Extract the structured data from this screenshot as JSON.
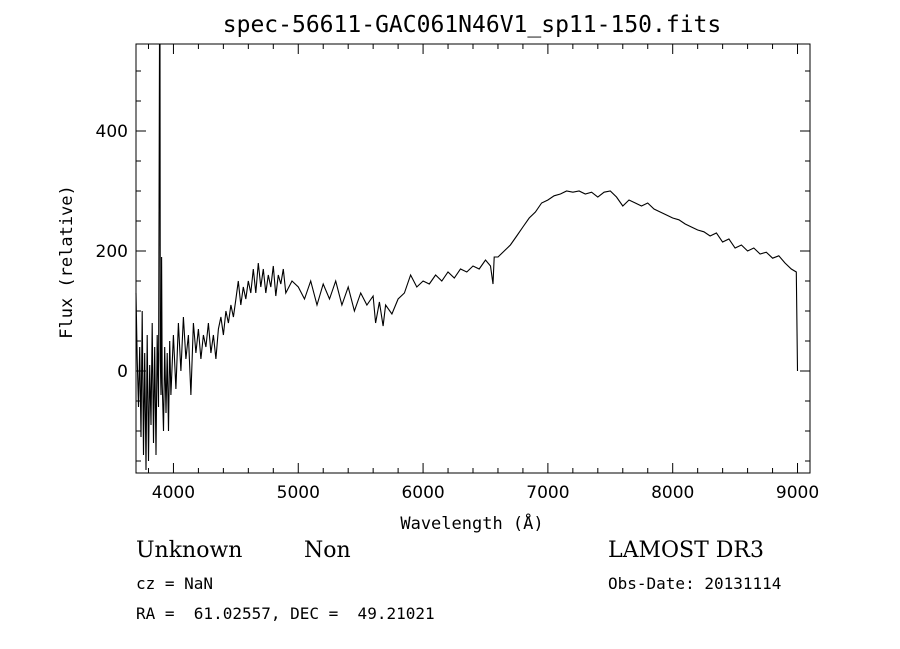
{
  "chart_data": {
    "type": "line",
    "title": "spec-56611-GAC061N46V1_sp11-150.fits",
    "xlabel": "Wavelength (Å)",
    "ylabel": "Flux (relative)",
    "xlim": [
      3700,
      9100
    ],
    "ylim": [
      -170,
      545
    ],
    "xticks": [
      4000,
      5000,
      6000,
      7000,
      8000,
      9000
    ],
    "yticks": [
      0,
      200,
      400
    ],
    "grid": false,
    "series": [
      {
        "name": "flux",
        "points": [
          [
            3700,
            130
          ],
          [
            3710,
            20
          ],
          [
            3720,
            -60
          ],
          [
            3730,
            40
          ],
          [
            3740,
            -110
          ],
          [
            3750,
            100
          ],
          [
            3760,
            -140
          ],
          [
            3770,
            30
          ],
          [
            3780,
            -165
          ],
          [
            3790,
            60
          ],
          [
            3800,
            -150
          ],
          [
            3810,
            10
          ],
          [
            3820,
            -90
          ],
          [
            3830,
            80
          ],
          [
            3840,
            -120
          ],
          [
            3850,
            40
          ],
          [
            3860,
            -140
          ],
          [
            3870,
            60
          ],
          [
            3880,
            -60
          ],
          [
            3888,
            545
          ],
          [
            3892,
            545
          ],
          [
            3895,
            20
          ],
          [
            3900,
            -40
          ],
          [
            3905,
            190
          ],
          [
            3910,
            -20
          ],
          [
            3920,
            -100
          ],
          [
            3930,
            40
          ],
          [
            3940,
            -70
          ],
          [
            3950,
            30
          ],
          [
            3960,
            -100
          ],
          [
            3970,
            50
          ],
          [
            3980,
            -40
          ],
          [
            4000,
            60
          ],
          [
            4020,
            -30
          ],
          [
            4040,
            80
          ],
          [
            4060,
            0
          ],
          [
            4080,
            90
          ],
          [
            4100,
            20
          ],
          [
            4120,
            60
          ],
          [
            4140,
            -40
          ],
          [
            4160,
            80
          ],
          [
            4180,
            30
          ],
          [
            4200,
            70
          ],
          [
            4220,
            20
          ],
          [
            4240,
            60
          ],
          [
            4260,
            40
          ],
          [
            4280,
            80
          ],
          [
            4300,
            30
          ],
          [
            4320,
            60
          ],
          [
            4340,
            20
          ],
          [
            4360,
            70
          ],
          [
            4380,
            90
          ],
          [
            4400,
            60
          ],
          [
            4420,
            100
          ],
          [
            4440,
            80
          ],
          [
            4460,
            110
          ],
          [
            4480,
            90
          ],
          [
            4500,
            120
          ],
          [
            4520,
            150
          ],
          [
            4540,
            110
          ],
          [
            4560,
            140
          ],
          [
            4580,
            120
          ],
          [
            4600,
            150
          ],
          [
            4620,
            130
          ],
          [
            4640,
            170
          ],
          [
            4660,
            130
          ],
          [
            4680,
            180
          ],
          [
            4700,
            140
          ],
          [
            4720,
            170
          ],
          [
            4740,
            130
          ],
          [
            4760,
            160
          ],
          [
            4780,
            140
          ],
          [
            4800,
            175
          ],
          [
            4820,
            125
          ],
          [
            4840,
            160
          ],
          [
            4860,
            145
          ],
          [
            4880,
            170
          ],
          [
            4900,
            130
          ],
          [
            4950,
            150
          ],
          [
            5000,
            140
          ],
          [
            5050,
            120
          ],
          [
            5100,
            150
          ],
          [
            5150,
            110
          ],
          [
            5200,
            145
          ],
          [
            5250,
            120
          ],
          [
            5300,
            150
          ],
          [
            5350,
            110
          ],
          [
            5400,
            140
          ],
          [
            5450,
            100
          ],
          [
            5500,
            130
          ],
          [
            5550,
            110
          ],
          [
            5600,
            125
          ],
          [
            5620,
            80
          ],
          [
            5650,
            115
          ],
          [
            5680,
            75
          ],
          [
            5700,
            110
          ],
          [
            5750,
            95
          ],
          [
            5800,
            120
          ],
          [
            5850,
            130
          ],
          [
            5900,
            160
          ],
          [
            5950,
            140
          ],
          [
            6000,
            150
          ],
          [
            6050,
            145
          ],
          [
            6100,
            160
          ],
          [
            6150,
            150
          ],
          [
            6200,
            165
          ],
          [
            6250,
            155
          ],
          [
            6300,
            170
          ],
          [
            6350,
            165
          ],
          [
            6400,
            175
          ],
          [
            6450,
            170
          ],
          [
            6500,
            185
          ],
          [
            6540,
            175
          ],
          [
            6560,
            145
          ],
          [
            6570,
            190
          ],
          [
            6600,
            190
          ],
          [
            6650,
            200
          ],
          [
            6700,
            210
          ],
          [
            6750,
            225
          ],
          [
            6800,
            240
          ],
          [
            6850,
            255
          ],
          [
            6900,
            265
          ],
          [
            6950,
            280
          ],
          [
            7000,
            285
          ],
          [
            7050,
            292
          ],
          [
            7100,
            295
          ],
          [
            7150,
            300
          ],
          [
            7200,
            298
          ],
          [
            7250,
            300
          ],
          [
            7300,
            295
          ],
          [
            7350,
            298
          ],
          [
            7400,
            290
          ],
          [
            7450,
            298
          ],
          [
            7500,
            300
          ],
          [
            7550,
            290
          ],
          [
            7600,
            275
          ],
          [
            7650,
            285
          ],
          [
            7700,
            280
          ],
          [
            7750,
            275
          ],
          [
            7800,
            280
          ],
          [
            7850,
            270
          ],
          [
            7900,
            265
          ],
          [
            7950,
            260
          ],
          [
            8000,
            255
          ],
          [
            8050,
            252
          ],
          [
            8100,
            245
          ],
          [
            8150,
            240
          ],
          [
            8200,
            235
          ],
          [
            8250,
            232
          ],
          [
            8300,
            225
          ],
          [
            8350,
            230
          ],
          [
            8400,
            215
          ],
          [
            8450,
            220
          ],
          [
            8500,
            205
          ],
          [
            8550,
            210
          ],
          [
            8600,
            200
          ],
          [
            8650,
            205
          ],
          [
            8700,
            195
          ],
          [
            8750,
            198
          ],
          [
            8800,
            188
          ],
          [
            8850,
            192
          ],
          [
            8900,
            180
          ],
          [
            8950,
            170
          ],
          [
            8990,
            165
          ],
          [
            9000,
            0
          ]
        ]
      }
    ]
  },
  "info": {
    "object_class": "Unknown",
    "object_subclass": "Non",
    "redshift": "cz = NaN",
    "coordinates": "RA =  61.02557, DEC =  49.21021",
    "survey": "LAMOST DR3",
    "obs_date": "Obs-Date: 20131114"
  }
}
